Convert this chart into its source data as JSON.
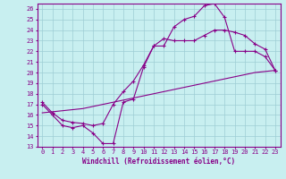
{
  "xlabel": "Windchill (Refroidissement éolien,°C)",
  "bg_color": "#c8eff0",
  "grid_color": "#9dcdd4",
  "line_color": "#880088",
  "xlim": [
    -0.5,
    23.5
  ],
  "ylim": [
    13,
    26.5
  ],
  "xticks": [
    0,
    1,
    2,
    3,
    4,
    5,
    6,
    7,
    8,
    9,
    10,
    11,
    12,
    13,
    14,
    15,
    16,
    17,
    18,
    19,
    20,
    21,
    22,
    23
  ],
  "yticks": [
    13,
    14,
    15,
    16,
    17,
    18,
    19,
    20,
    21,
    22,
    23,
    24,
    25,
    26
  ],
  "line1_x": [
    0,
    1,
    2,
    3,
    4,
    5,
    6,
    7,
    8,
    9,
    10,
    11,
    12,
    13,
    14,
    15,
    16,
    17,
    18,
    19,
    20,
    21,
    22,
    23
  ],
  "line1_y": [
    17,
    16,
    15,
    14.8,
    15,
    14.3,
    13.3,
    13.3,
    17.2,
    17.5,
    20.5,
    22.5,
    22.5,
    24.3,
    25,
    25.3,
    26.3,
    26.5,
    25.2,
    22.0,
    22.0,
    22.0,
    21.5,
    20.2
  ],
  "line2_x": [
    0,
    1,
    2,
    3,
    4,
    5,
    6,
    7,
    8,
    9,
    10,
    11,
    12,
    13,
    14,
    15,
    16,
    17,
    18,
    19,
    20,
    21,
    22,
    23
  ],
  "line2_y": [
    17.2,
    16.2,
    15.5,
    15.3,
    15.2,
    15.0,
    15.2,
    17.0,
    18.2,
    19.2,
    20.7,
    22.5,
    23.2,
    23.0,
    23.0,
    23.0,
    23.5,
    24.0,
    24.0,
    23.8,
    23.5,
    22.7,
    22.2,
    20.2
  ],
  "line3_x": [
    0,
    1,
    2,
    3,
    4,
    5,
    6,
    7,
    8,
    9,
    10,
    11,
    12,
    13,
    14,
    15,
    16,
    17,
    18,
    19,
    20,
    21,
    22,
    23
  ],
  "line3_y": [
    16.2,
    16.3,
    16.4,
    16.5,
    16.6,
    16.8,
    17.0,
    17.2,
    17.4,
    17.6,
    17.8,
    18.0,
    18.2,
    18.4,
    18.6,
    18.8,
    19.0,
    19.2,
    19.4,
    19.6,
    19.8,
    20.0,
    20.1,
    20.2
  ]
}
